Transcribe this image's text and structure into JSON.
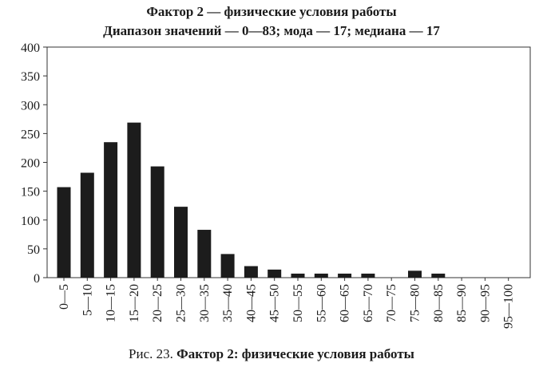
{
  "chart_data": {
    "type": "bar",
    "title": "Фактор 2 — физические условия работы",
    "subtitle": "Диапазон значений — 0—83; мода — 17; медиана — 17",
    "categories": [
      "0—5",
      "5—10",
      "10—15",
      "15—20",
      "20—25",
      "25—30",
      "30—35",
      "35—40",
      "40—45",
      "45—50",
      "50—55",
      "55—60",
      "60—65",
      "65—70",
      "70—75",
      "75—80",
      "80—85",
      "85—90",
      "90—95",
      "95—100"
    ],
    "values": [
      157,
      182,
      235,
      269,
      193,
      123,
      83,
      41,
      20,
      14,
      7,
      7,
      7,
      7,
      0,
      12,
      7,
      0,
      0,
      0
    ],
    "ylim": [
      0,
      400
    ],
    "yticks": [
      "0",
      "50",
      "100",
      "150",
      "200",
      "250",
      "300",
      "350",
      "400"
    ],
    "grid": false,
    "bar_color": "#1c1c1c"
  },
  "caption": {
    "number": "Рис. 23.",
    "text": "Фактор 2:  физические условия работы"
  }
}
